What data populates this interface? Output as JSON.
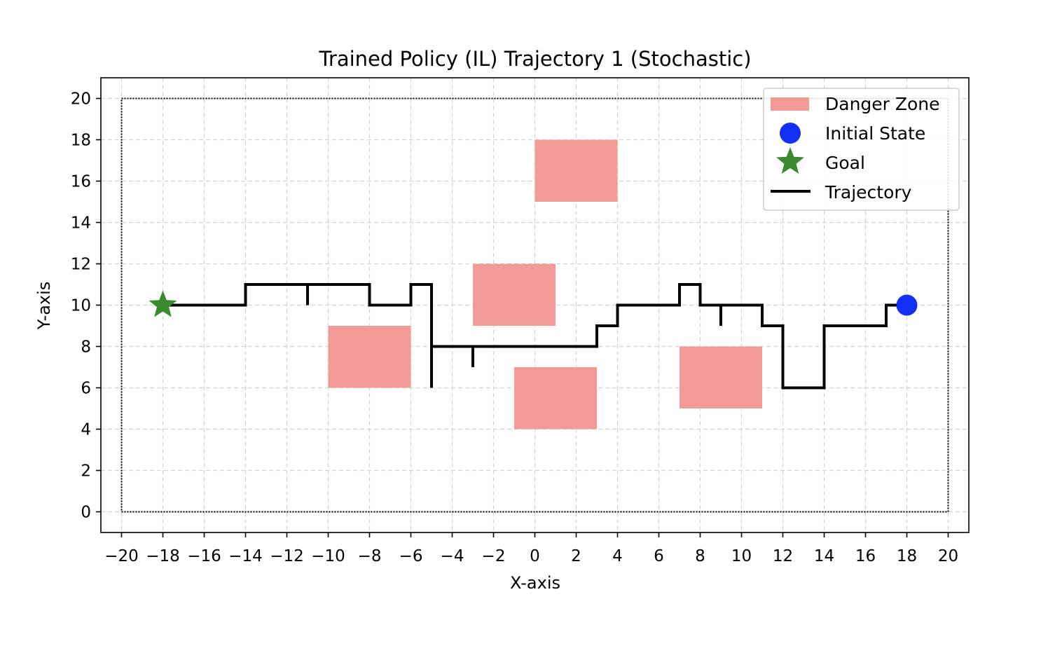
{
  "chart_data": {
    "type": "line",
    "title": "Trained Policy (IL) Trajectory 1 (Stochastic)",
    "xlabel": "X-axis",
    "ylabel": "Y-axis",
    "xlim": [
      -21,
      21
    ],
    "ylim": [
      -1,
      21
    ],
    "xticks": [
      -20,
      -18,
      -16,
      -14,
      -12,
      -10,
      -8,
      -6,
      -4,
      -2,
      0,
      2,
      4,
      6,
      8,
      10,
      12,
      14,
      16,
      18,
      20
    ],
    "yticks": [
      0,
      2,
      4,
      6,
      8,
      10,
      12,
      14,
      16,
      18,
      20
    ],
    "xtick_labels": [
      "−20",
      "−18",
      "−16",
      "−14",
      "−12",
      "−10",
      "−8",
      "−6",
      "−4",
      "−2",
      "0",
      "2",
      "4",
      "6",
      "8",
      "10",
      "12",
      "14",
      "16",
      "18",
      "20"
    ],
    "ytick_labels": [
      "0",
      "2",
      "4",
      "6",
      "8",
      "10",
      "12",
      "14",
      "16",
      "18",
      "20"
    ],
    "grid": true,
    "boundary": {
      "x": [
        -20,
        20
      ],
      "y": [
        0,
        20
      ]
    },
    "danger_zones": [
      {
        "x": [
          0,
          4
        ],
        "y": [
          15,
          18
        ]
      },
      {
        "x": [
          -3,
          1
        ],
        "y": [
          9,
          12
        ]
      },
      {
        "x": [
          -10,
          -6
        ],
        "y": [
          6,
          9
        ]
      },
      {
        "x": [
          -1,
          3
        ],
        "y": [
          4,
          7
        ]
      },
      {
        "x": [
          7,
          11
        ],
        "y": [
          5,
          8
        ]
      }
    ],
    "initial_state": {
      "x": 18,
      "y": 10
    },
    "goal": {
      "x": -18,
      "y": 10
    },
    "trajectory": {
      "x": [
        18,
        17,
        17,
        14,
        14,
        12,
        12,
        12,
        12,
        11,
        11,
        9,
        9,
        9,
        8,
        8,
        7,
        7,
        4,
        4,
        3,
        3,
        -3,
        -3,
        -3,
        -5,
        -5,
        -5,
        -5,
        -6,
        -6,
        -8,
        -8,
        -11,
        -11,
        -11,
        -14,
        -14,
        -18
      ],
      "y": [
        10,
        10,
        9,
        9,
        6,
        6,
        7,
        6,
        9,
        9,
        10,
        10,
        9,
        10,
        10,
        11,
        11,
        10,
        10,
        9,
        9,
        8,
        8,
        7,
        8,
        8,
        6,
        9,
        11,
        11,
        10,
        10,
        11,
        11,
        10,
        11,
        11,
        10,
        10
      ]
    },
    "legend": {
      "position": "top-right",
      "entries": [
        "Danger Zone",
        "Initial State",
        "Goal",
        "Trajectory"
      ]
    },
    "colors": {
      "danger": "#f19a96",
      "initial": "#1530f5",
      "goal": "#3a8a2e",
      "trajectory": "#000000",
      "grid": "#d3d3d3"
    }
  }
}
